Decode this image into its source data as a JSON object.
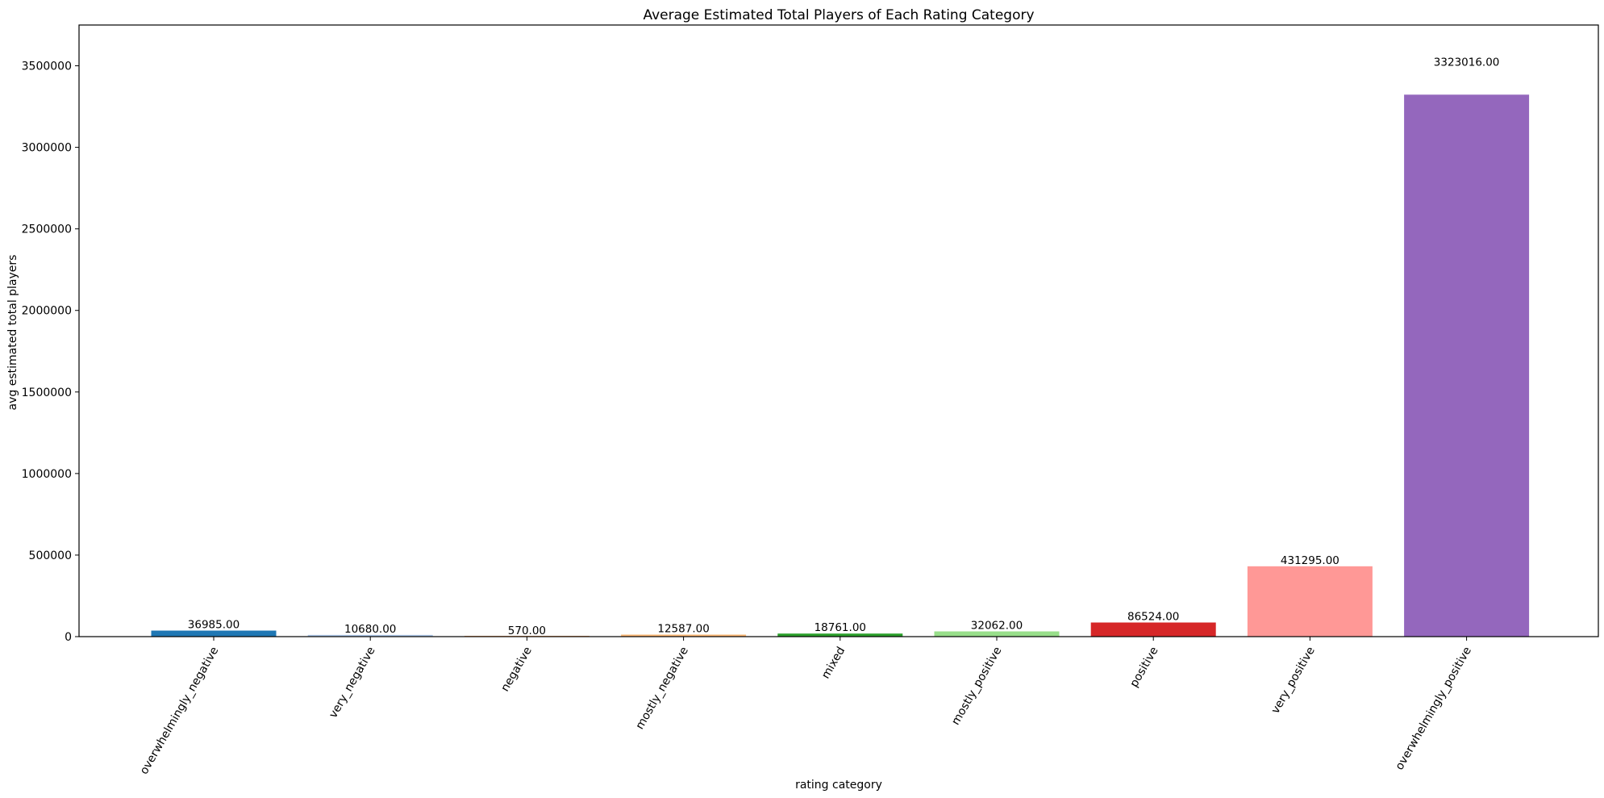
{
  "chart_data": {
    "type": "bar",
    "title": "Average Estimated Total Players of Each Rating Category",
    "xlabel": "rating category",
    "ylabel": "avg estimated total players",
    "categories": [
      "overwhelmingly_negative",
      "very_negative",
      "negative",
      "mostly_negative",
      "mixed",
      "mostly_positive",
      "positive",
      "very_positive",
      "overwhelmingly_positive"
    ],
    "values": [
      36985,
      10680,
      570,
      12587,
      18761,
      32062,
      86524,
      431295,
      3323016
    ],
    "value_labels": [
      "36985.00",
      "10680.00",
      "570.00",
      "12587.00",
      "18761.00",
      "32062.00",
      "86524.00",
      "431295.00",
      "3323016.00"
    ],
    "colors": [
      "#1f77b4",
      "#aec7e8",
      "#ff7f0e",
      "#ffbb78",
      "#2ca02c",
      "#98df8a",
      "#d62728",
      "#ff9896",
      "#9467bd"
    ],
    "ylim": [
      0,
      3750000
    ],
    "yticks": [
      0,
      500000,
      1000000,
      1500000,
      2000000,
      2500000,
      3000000,
      3500000
    ],
    "ytick_labels": [
      "0",
      "500000",
      "1000000",
      "1500000",
      "2000000",
      "2500000",
      "3000000",
      "3500000"
    ],
    "grid": false,
    "legend": "none"
  }
}
